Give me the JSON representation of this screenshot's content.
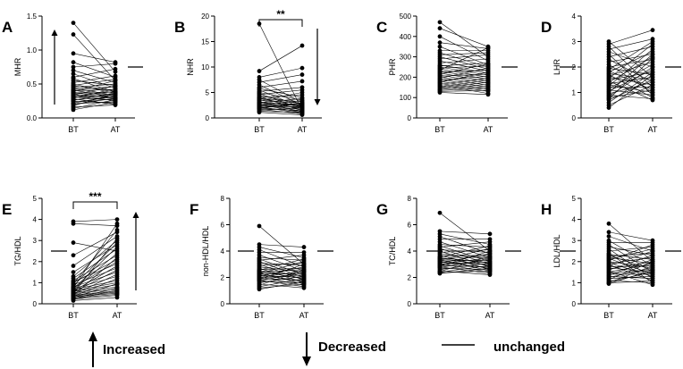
{
  "figure": {
    "panel_count": 8
  },
  "legend": {
    "increased": "Increased",
    "decreased": "Decreased",
    "unchanged": "unchanged"
  },
  "chart_data": [
    {
      "type": "scatter",
      "panel": "A",
      "ylabel": "MHR",
      "categories": [
        "BT",
        "AT"
      ],
      "ylim": [
        0,
        1.5
      ],
      "ticks": [
        0,
        0.5,
        1.0,
        1.5
      ],
      "tick_labels": [
        "0.0",
        "0.5",
        "1.0",
        "1.5"
      ],
      "trend": "increased",
      "significance": "",
      "series": [
        {
          "name": "BT",
          "values": [
            1.4,
            1.23,
            0.95,
            0.82,
            0.75,
            0.7,
            0.65,
            0.6,
            0.58,
            0.55,
            0.52,
            0.5,
            0.48,
            0.47,
            0.45,
            0.44,
            0.42,
            0.41,
            0.4,
            0.39,
            0.38,
            0.37,
            0.36,
            0.35,
            0.34,
            0.33,
            0.32,
            0.31,
            0.3,
            0.29,
            0.28,
            0.27,
            0.26,
            0.25,
            0.24,
            0.22,
            0.21,
            0.2,
            0.18,
            0.16,
            0.14,
            0.12
          ]
        },
        {
          "name": "AT",
          "values": [
            0.68,
            0.55,
            0.82,
            0.6,
            0.8,
            0.52,
            0.44,
            0.72,
            0.38,
            0.48,
            0.62,
            0.36,
            0.57,
            0.4,
            0.5,
            0.33,
            0.46,
            0.3,
            0.42,
            0.55,
            0.28,
            0.38,
            0.35,
            0.25,
            0.47,
            0.31,
            0.39,
            0.26,
            0.34,
            0.43,
            0.2,
            0.3,
            0.37,
            0.22,
            0.28,
            0.33,
            0.24,
            0.29,
            0.36,
            0.19,
            0.27,
            0.23
          ]
        }
      ]
    },
    {
      "type": "scatter",
      "panel": "B",
      "ylabel": "NHR",
      "categories": [
        "BT",
        "AT"
      ],
      "ylim": [
        0,
        20
      ],
      "ticks": [
        0,
        5,
        10,
        15,
        20
      ],
      "tick_labels": [
        "0",
        "5",
        "10",
        "15",
        "20"
      ],
      "trend": "decreased",
      "significance": "**",
      "series": [
        {
          "name": "BT",
          "values": [
            18.5,
            9.2,
            8.0,
            7.5,
            7.0,
            6.5,
            6.0,
            5.8,
            5.5,
            5.2,
            5.0,
            4.8,
            4.6,
            4.4,
            4.2,
            4.0,
            3.9,
            3.8,
            3.6,
            3.5,
            3.4,
            3.2,
            3.1,
            3.0,
            2.9,
            2.8,
            2.7,
            2.6,
            2.5,
            2.4,
            2.3,
            2.2,
            2.1,
            2.0,
            1.9,
            1.8,
            1.7,
            1.5,
            1.3,
            1.1
          ]
        },
        {
          "name": "AT",
          "values": [
            1.5,
            14.2,
            9.8,
            3.0,
            8.5,
            2.5,
            7.2,
            4.0,
            2.0,
            6.0,
            3.5,
            1.8,
            5.5,
            2.8,
            1.4,
            4.5,
            2.2,
            3.2,
            1.6,
            2.9,
            5.0,
            1.2,
            2.4,
            3.8,
            1.9,
            2.7,
            1.0,
            2.1,
            3.4,
            1.7,
            2.6,
            0.9,
            2.3,
            1.3,
            3.0,
            1.5,
            0.8,
            2.0,
            1.1,
            0.6
          ]
        }
      ]
    },
    {
      "type": "scatter",
      "panel": "C",
      "ylabel": "PHR",
      "categories": [
        "BT",
        "AT"
      ],
      "ylim": [
        0,
        500
      ],
      "ticks": [
        0,
        100,
        200,
        300,
        400,
        500
      ],
      "tick_labels": [
        "0",
        "100",
        "200",
        "300",
        "400",
        "500"
      ],
      "trend": "unchanged",
      "significance": "",
      "series": [
        {
          "name": "BT",
          "values": [
            470,
            440,
            400,
            370,
            350,
            330,
            320,
            310,
            300,
            290,
            280,
            270,
            260,
            255,
            250,
            245,
            240,
            235,
            230,
            225,
            220,
            215,
            210,
            205,
            200,
            195,
            190,
            185,
            180,
            175,
            170,
            165,
            160,
            155,
            150,
            145,
            140,
            135,
            130,
            125
          ]
        },
        {
          "name": "AT",
          "values": [
            300,
            350,
            280,
            340,
            260,
            330,
            250,
            320,
            240,
            310,
            230,
            290,
            220,
            270,
            210,
            255,
            200,
            345,
            190,
            235,
            180,
            265,
            170,
            215,
            160,
            245,
            150,
            205,
            140,
            225,
            130,
            195,
            120,
            185,
            175,
            165,
            155,
            145,
            135,
            115
          ]
        }
      ]
    },
    {
      "type": "scatter",
      "panel": "D",
      "ylabel": "LHR",
      "categories": [
        "BT",
        "AT"
      ],
      "ylim": [
        0,
        4
      ],
      "ticks": [
        0,
        1,
        2,
        3,
        4
      ],
      "tick_labels": [
        "0",
        "1",
        "2",
        "3",
        "4"
      ],
      "trend": "unchanged",
      "significance": "",
      "series": [
        {
          "name": "BT",
          "values": [
            3.0,
            2.9,
            2.8,
            2.7,
            2.6,
            2.5,
            2.4,
            2.3,
            2.2,
            2.1,
            2.0,
            1.95,
            1.9,
            1.85,
            1.8,
            1.75,
            1.7,
            1.65,
            1.6,
            1.55,
            1.5,
            1.45,
            1.4,
            1.35,
            1.3,
            1.25,
            1.2,
            1.15,
            1.1,
            1.05,
            1.0,
            0.95,
            0.9,
            0.85,
            0.8,
            0.75,
            0.7,
            0.6,
            0.5,
            0.4
          ]
        },
        {
          "name": "AT",
          "values": [
            1.6,
            3.45,
            1.2,
            3.1,
            2.0,
            0.9,
            2.8,
            1.4,
            2.5,
            1.0,
            2.3,
            1.7,
            3.0,
            1.1,
            2.6,
            1.5,
            0.8,
            2.2,
            1.3,
            2.9,
            1.8,
            0.7,
            2.4,
            1.6,
            1.0,
            2.7,
            1.2,
            2.1,
            0.9,
            1.9,
            2.5,
            1.4,
            0.75,
            2.0,
            1.1,
            2.35,
            1.5,
            1.8,
            1.3,
            1.7
          ]
        }
      ]
    },
    {
      "type": "scatter",
      "panel": "E",
      "ylabel": "TG/HDL",
      "categories": [
        "BT",
        "AT"
      ],
      "ylim": [
        0,
        5
      ],
      "ticks": [
        0,
        1,
        2,
        3,
        4,
        5
      ],
      "tick_labels": [
        "0",
        "1",
        "2",
        "3",
        "4",
        "5"
      ],
      "trend": "increased",
      "significance": "***",
      "series": [
        {
          "name": "BT",
          "values": [
            3.9,
            3.8,
            2.9,
            2.3,
            1.8,
            1.5,
            1.3,
            1.2,
            1.1,
            1.05,
            1.0,
            0.95,
            0.9,
            0.85,
            0.8,
            0.78,
            0.75,
            0.72,
            0.7,
            0.68,
            0.65,
            0.62,
            0.6,
            0.58,
            0.55,
            0.52,
            0.5,
            0.48,
            0.45,
            0.42,
            0.4,
            0.38,
            0.35,
            0.33,
            0.3,
            0.28,
            0.25,
            0.22,
            0.2,
            0.15
          ]
        },
        {
          "name": "AT",
          "values": [
            4.0,
            3.7,
            2.5,
            3.4,
            3.2,
            2.8,
            3.0,
            2.6,
            2.3,
            1.9,
            2.1,
            3.5,
            1.7,
            2.9,
            1.5,
            2.0,
            3.8,
            1.3,
            2.7,
            1.1,
            2.4,
            1.0,
            1.8,
            0.9,
            1.6,
            0.8,
            3.1,
            0.7,
            1.4,
            0.6,
            2.2,
            0.55,
            1.2,
            0.5,
            0.95,
            0.45,
            0.75,
            0.4,
            0.65,
            0.3
          ]
        }
      ]
    },
    {
      "type": "scatter",
      "panel": "F",
      "ylabel": "non-HDL/HDL",
      "categories": [
        "BT",
        "AT"
      ],
      "ylim": [
        0,
        8
      ],
      "ticks": [
        0,
        2,
        4,
        6,
        8
      ],
      "tick_labels": [
        "0",
        "2",
        "4",
        "6",
        "8"
      ],
      "trend": "unchanged",
      "significance": "",
      "series": [
        {
          "name": "BT",
          "values": [
            5.9,
            4.5,
            4.3,
            4.1,
            3.9,
            3.7,
            3.5,
            3.4,
            3.3,
            3.2,
            3.1,
            3.0,
            2.9,
            2.8,
            2.7,
            2.6,
            2.55,
            2.5,
            2.45,
            2.4,
            2.35,
            2.3,
            2.25,
            2.2,
            2.15,
            2.1,
            2.05,
            2.0,
            1.95,
            1.9,
            1.85,
            1.8,
            1.75,
            1.7,
            1.6,
            1.5,
            1.4,
            1.3,
            1.2,
            1.1
          ]
        },
        {
          "name": "AT",
          "values": [
            3.0,
            4.3,
            3.5,
            2.8,
            3.9,
            2.5,
            3.3,
            2.2,
            3.7,
            2.0,
            2.9,
            1.8,
            3.1,
            2.4,
            1.6,
            2.7,
            3.4,
            2.1,
            1.9,
            2.6,
            1.5,
            3.2,
            2.3,
            1.7,
            2.0,
            2.8,
            1.4,
            2.5,
            2.2,
            1.8,
            3.0,
            1.3,
            2.4,
            1.6,
            2.1,
            1.2,
            2.6,
            1.9,
            1.5,
            1.7
          ]
        }
      ]
    },
    {
      "type": "scatter",
      "panel": "G",
      "ylabel": "TC/HDL",
      "categories": [
        "BT",
        "AT"
      ],
      "ylim": [
        0,
        8
      ],
      "ticks": [
        0,
        2,
        4,
        6,
        8
      ],
      "tick_labels": [
        "0",
        "2",
        "4",
        "6",
        "8"
      ],
      "trend": "unchanged",
      "significance": "",
      "series": [
        {
          "name": "BT",
          "values": [
            6.9,
            5.5,
            5.3,
            5.1,
            4.9,
            4.7,
            4.5,
            4.4,
            4.3,
            4.2,
            4.1,
            4.0,
            3.9,
            3.8,
            3.7,
            3.6,
            3.55,
            3.5,
            3.45,
            3.4,
            3.35,
            3.3,
            3.25,
            3.2,
            3.15,
            3.1,
            3.05,
            3.0,
            2.95,
            2.9,
            2.85,
            2.8,
            2.75,
            2.7,
            2.6,
            2.5,
            2.45,
            2.4,
            2.35,
            2.3
          ]
        },
        {
          "name": "AT",
          "values": [
            4.0,
            5.3,
            4.5,
            3.8,
            4.9,
            3.5,
            4.3,
            3.2,
            4.7,
            3.0,
            3.9,
            2.8,
            4.1,
            3.4,
            2.6,
            3.7,
            4.4,
            3.1,
            2.9,
            3.6,
            2.5,
            4.2,
            3.3,
            2.7,
            3.0,
            3.8,
            2.4,
            3.5,
            3.2,
            2.8,
            4.0,
            2.3,
            3.4,
            2.6,
            3.1,
            2.2,
            3.6,
            2.9,
            2.5,
            2.7
          ]
        }
      ]
    },
    {
      "type": "scatter",
      "panel": "H",
      "ylabel": "LDL/HDL",
      "categories": [
        "BT",
        "AT"
      ],
      "ylim": [
        0,
        5
      ],
      "ticks": [
        0,
        1,
        2,
        3,
        4,
        5
      ],
      "tick_labels": [
        "0",
        "1",
        "2",
        "3",
        "4",
        "5"
      ],
      "trend": "unchanged",
      "significance": "",
      "series": [
        {
          "name": "BT",
          "values": [
            3.8,
            3.4,
            3.2,
            3.0,
            2.9,
            2.8,
            2.7,
            2.6,
            2.5,
            2.4,
            2.35,
            2.3,
            2.25,
            2.2,
            2.15,
            2.1,
            2.05,
            2.0,
            1.95,
            1.9,
            1.85,
            1.8,
            1.75,
            1.7,
            1.65,
            1.6,
            1.55,
            1.5,
            1.45,
            1.4,
            1.35,
            1.3,
            1.25,
            1.2,
            1.15,
            1.1,
            1.05,
            1.0,
            0.98,
            0.95
          ]
        },
        {
          "name": "AT",
          "values": [
            2.0,
            3.0,
            2.5,
            1.8,
            2.9,
            1.5,
            2.3,
            1.2,
            2.7,
            1.0,
            2.1,
            1.6,
            2.4,
            1.9,
            1.4,
            2.6,
            2.8,
            1.7,
            1.3,
            2.2,
            1.1,
            2.5,
            1.8,
            1.5,
            2.0,
            2.3,
            0.9,
            1.9,
            1.6,
            1.4,
            2.1,
            1.2,
            1.7,
            1.3,
            2.0,
            1.0,
            1.5,
            1.8,
            1.1,
            1.6
          ]
        }
      ]
    }
  ]
}
